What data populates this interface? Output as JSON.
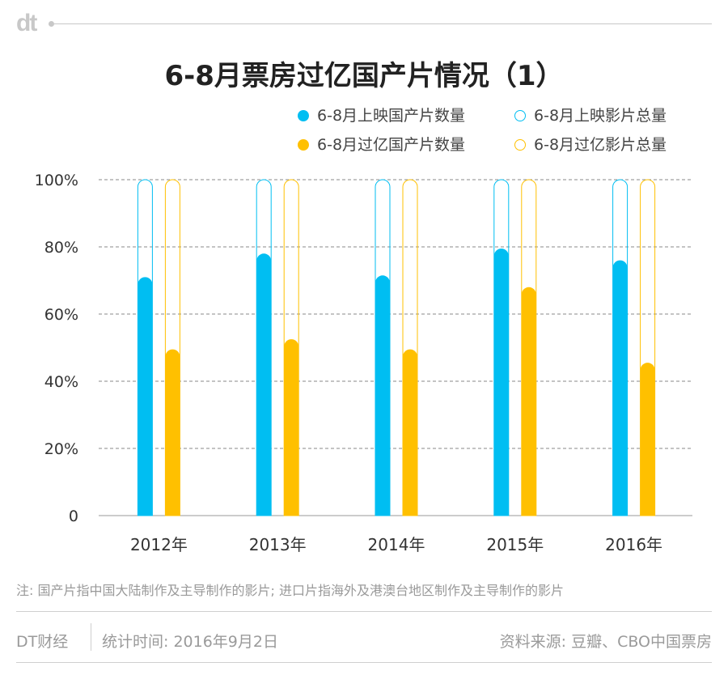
{
  "brand": {
    "logo_text": "dt"
  },
  "chart_data": {
    "type": "bar",
    "title": "6-8月票房过亿国产片情况（1）",
    "categories": [
      "2012年",
      "2013年",
      "2014年",
      "2015年",
      "2016年"
    ],
    "series": [
      {
        "name": "6-8月上映国产片数量",
        "values": [
          71,
          78,
          71.5,
          79.5,
          76
        ],
        "color": "#00bef2",
        "style": "filled"
      },
      {
        "name": "6-8月上映影片总量",
        "values": [
          100,
          100,
          100,
          100,
          100
        ],
        "color": "#00bef2",
        "style": "outline"
      },
      {
        "name": "6-8月过亿国产片数量",
        "values": [
          49.5,
          52.5,
          49.5,
          68,
          45.5
        ],
        "color": "#ffc000",
        "style": "filled"
      },
      {
        "name": "6-8月过亿影片总量",
        "values": [
          100,
          100,
          100,
          100,
          100
        ],
        "color": "#ffc000",
        "style": "outline"
      }
    ],
    "y_ticks": [
      "0",
      "20%",
      "40%",
      "60%",
      "80%",
      "100%"
    ],
    "ylim": [
      0,
      100
    ],
    "grid": true,
    "legend_position": "top-right"
  },
  "footer": {
    "note": "注: 国产片指中国大陆制作及主导制作的影片; 进口片指海外及港澳台地区制作及主导制作的影片",
    "source_brand": "DT财经",
    "stat_time": "统计时间: 2016年9月2日",
    "data_source": "资料来源: 豆瓣、CBO中国票房"
  }
}
